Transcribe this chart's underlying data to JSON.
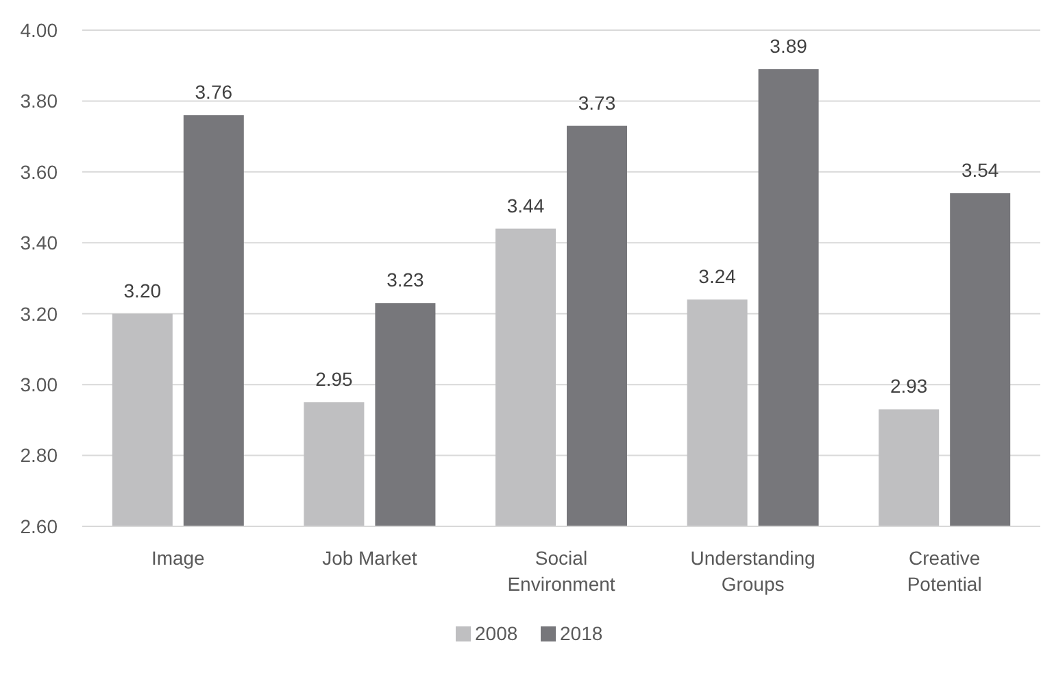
{
  "chart_data": {
    "type": "bar",
    "categories": [
      "Image",
      "Job Market",
      "Social Environment",
      "Understanding Groups",
      "Creative Potential"
    ],
    "series": [
      {
        "name": "2008",
        "color": "#bfbfc1",
        "values": [
          3.2,
          2.95,
          3.44,
          3.24,
          2.93
        ],
        "value_labels": [
          "3.20",
          "2.95",
          "3.44",
          "3.24",
          "2.93"
        ]
      },
      {
        "name": "2018",
        "color": "#77777b",
        "values": [
          3.76,
          3.23,
          3.73,
          3.89,
          3.54
        ],
        "value_labels": [
          "3.76",
          "3.23",
          "3.73",
          "3.89",
          "3.54"
        ]
      }
    ],
    "ylim": [
      2.6,
      4.0
    ],
    "yticks": [
      {
        "value": 2.6,
        "label": "2.60"
      },
      {
        "value": 2.8,
        "label": "2.80"
      },
      {
        "value": 3.0,
        "label": "3.00"
      },
      {
        "value": 3.2,
        "label": "3.20"
      },
      {
        "value": 3.4,
        "label": "3.40"
      },
      {
        "value": 3.6,
        "label": "3.60"
      },
      {
        "value": 3.8,
        "label": "3.80"
      },
      {
        "value": 4.0,
        "label": "4.00"
      }
    ],
    "grid": "y",
    "legend": "bottom"
  }
}
